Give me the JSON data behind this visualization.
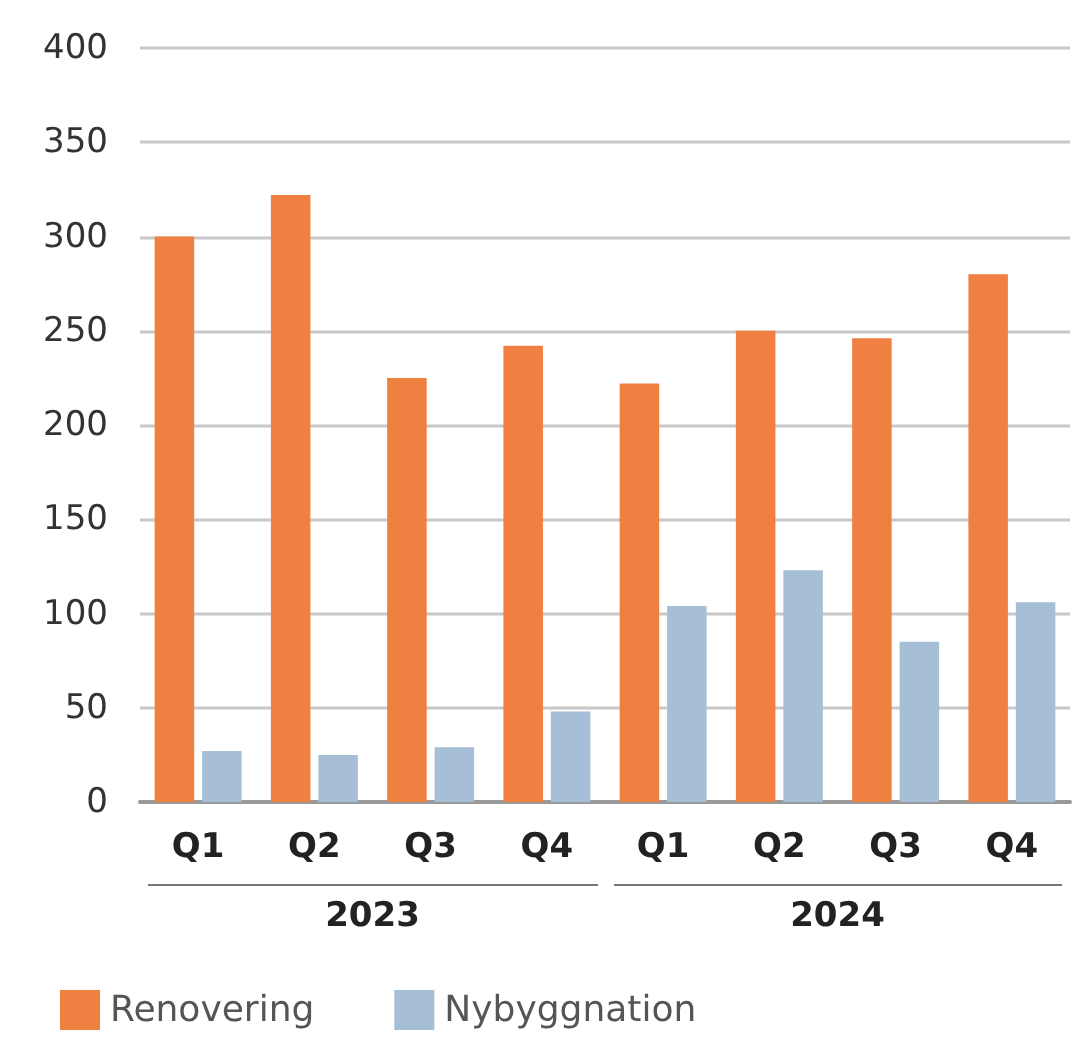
{
  "chart_data": {
    "type": "bar",
    "categories": [
      "Q1",
      "Q2",
      "Q3",
      "Q4",
      "Q1",
      "Q2",
      "Q3",
      "Q4"
    ],
    "series": [
      {
        "name": "Renovering",
        "color": "#f07f42",
        "values": [
          300,
          322,
          225,
          242,
          222,
          250,
          246,
          280
        ]
      },
      {
        "name": "Nybyggnation",
        "color": "#a6bfd6",
        "values": [
          27,
          25,
          29,
          48,
          104,
          123,
          85,
          106
        ]
      }
    ],
    "ylim": [
      0,
      400
    ],
    "yticks": [
      0,
      50,
      100,
      150,
      200,
      250,
      300,
      350,
      400
    ],
    "grid": "y",
    "legend": "bottom left",
    "annotations": [
      "2023",
      "2024"
    ]
  }
}
